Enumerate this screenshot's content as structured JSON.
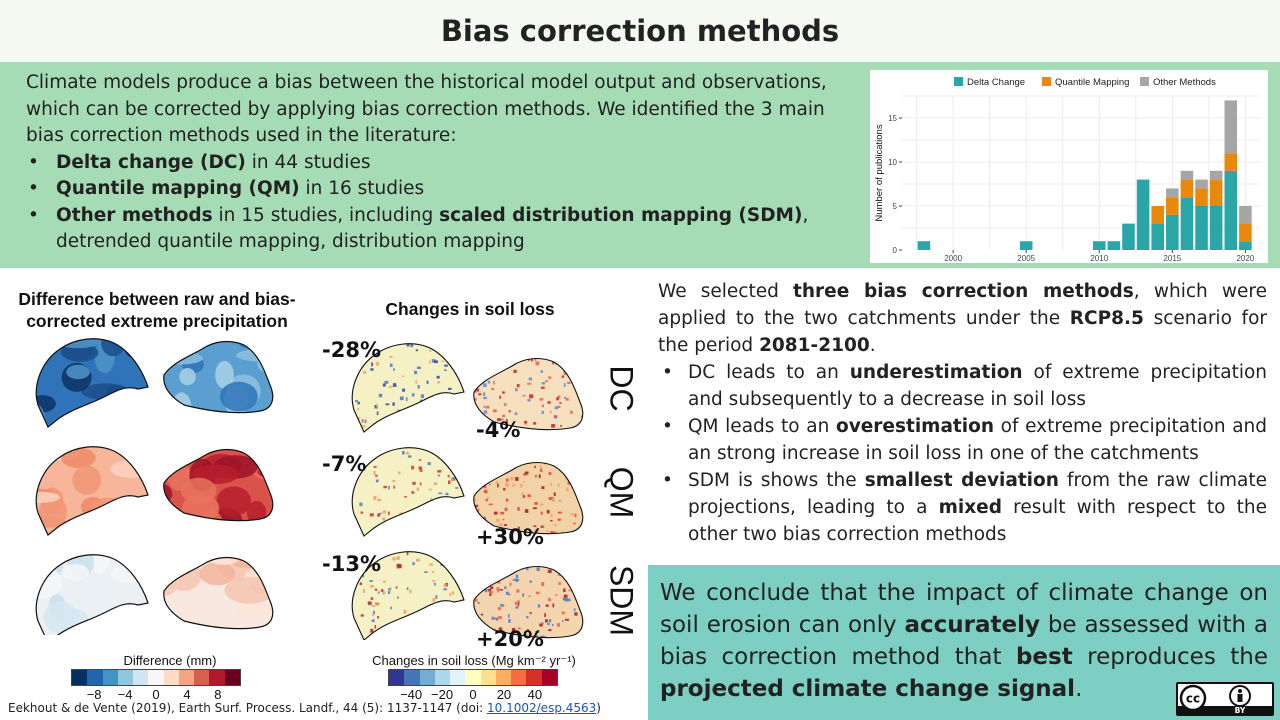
{
  "title": "Bias correction methods",
  "intro": {
    "lead": "Climate models produce a bias between the historical model output and observations, which can be corrected by applying bias correction methods. We identified the 3 main bias correction methods used in the literature:",
    "bullets": [
      {
        "bold": "Delta change (DC)",
        "rest": " in 44 studies"
      },
      {
        "bold": "Quantile mapping (QM)",
        "rest": " in 16 studies"
      },
      {
        "bold": "Other methods",
        "rest": " in 15 studies, including ",
        "bold2": "scaled distribution mapping (SDM)",
        "rest2": ", detrended quantile mapping, distribution mapping"
      }
    ]
  },
  "chart_data": {
    "type": "bar",
    "stacked": true,
    "legend_position": "top",
    "series": [
      {
        "name": "Delta Change",
        "color": "#2aa6a6"
      },
      {
        "name": "Quantile Mapping",
        "color": "#e8890c"
      },
      {
        "name": "Other Methods",
        "color": "#a6a6a6"
      }
    ],
    "ylabel": "Number of publications",
    "xlabel": "",
    "ylim": [
      0,
      17.5
    ],
    "xlim": [
      1996.5,
      2021
    ],
    "yticks": [
      0,
      5,
      10,
      15
    ],
    "xticks": [
      2000,
      2005,
      2010,
      2015,
      2020
    ],
    "grid": true,
    "bars": [
      {
        "year": 1998,
        "dc": 1,
        "qm": 0,
        "other": 0
      },
      {
        "year": 2005,
        "dc": 1,
        "qm": 0,
        "other": 0
      },
      {
        "year": 2010,
        "dc": 1,
        "qm": 0,
        "other": 0
      },
      {
        "year": 2011,
        "dc": 1,
        "qm": 0,
        "other": 0
      },
      {
        "year": 2012,
        "dc": 3,
        "qm": 0,
        "other": 0
      },
      {
        "year": 2013,
        "dc": 8,
        "qm": 0,
        "other": 0
      },
      {
        "year": 2014,
        "dc": 3,
        "qm": 2,
        "other": 0
      },
      {
        "year": 2015,
        "dc": 4,
        "qm": 2,
        "other": 1
      },
      {
        "year": 2016,
        "dc": 6,
        "qm": 2,
        "other": 1
      },
      {
        "year": 2017,
        "dc": 5,
        "qm": 2,
        "other": 1
      },
      {
        "year": 2018,
        "dc": 5,
        "qm": 3,
        "other": 1
      },
      {
        "year": 2019,
        "dc": 9,
        "qm": 2,
        "other": 6
      },
      {
        "year": 2020,
        "dc": 1,
        "qm": 2,
        "other": 2
      }
    ]
  },
  "left_panel": {
    "heading": "Difference between raw and bias-corrected extreme precipitation",
    "legend_title": "Difference (mm)",
    "legend_colors": [
      "#053061",
      "#2166ac",
      "#4393c3",
      "#92c5de",
      "#d1e5f0",
      "#f7f7f7",
      "#fddbc7",
      "#f4a582",
      "#d6604d",
      "#b2182b",
      "#67001f"
    ],
    "legend_ticks": [
      "−8",
      "−4",
      "0",
      "4",
      "8"
    ]
  },
  "middle_panel": {
    "heading": "Changes in soil loss",
    "legend_title": "Changes in soil loss (Mg km⁻² yr⁻¹)",
    "legend_colors": [
      "#313695",
      "#4575b4",
      "#74add1",
      "#abd9e9",
      "#e0f3f8",
      "#ffffbf",
      "#fee090",
      "#fdae61",
      "#f46d43",
      "#d73027",
      "#a50026"
    ],
    "legend_ticks": [
      "−40",
      "−20",
      "0",
      "20",
      "40"
    ],
    "percentages": {
      "dc_a": "-28%",
      "dc_b": "-4%",
      "qm_a": "-7%",
      "qm_b": "+30%",
      "sdm_a": "-13%",
      "sdm_b": "+20%"
    }
  },
  "methods": [
    "DC",
    "QM",
    "SDM"
  ],
  "maps": {
    "precip": [
      {
        "a_base": "#2f74b8",
        "a_spots": [
          "#1c4f8c",
          "#0c3365",
          "#4f93c8"
        ],
        "b_base": "#5a9fd0",
        "b_spots": [
          "#8ec0e0",
          "#2f74b8",
          "#a9d0e8"
        ]
      },
      {
        "a_base": "#f7b69c",
        "a_spots": [
          "#f19676",
          "#fbd3c0",
          "#ee8a66"
        ],
        "b_base": "#d9534a",
        "b_spots": [
          "#b61f2c",
          "#e8735e",
          "#9d1327"
        ]
      },
      {
        "a_base": "#eaf0f4",
        "a_spots": [
          "#d7e6f1",
          "#f6f6f6",
          "#c9dfee"
        ],
        "b_base": "#f9e8df",
        "b_spots": [
          "#f5c6b2",
          "#fde5d8",
          "#f2b49c"
        ]
      }
    ],
    "soil": [
      {
        "a_base": "#f5f1c4",
        "a_dots": [
          "#5b7fc2",
          "#3b54a0",
          "#f4a36b"
        ],
        "b_base": "#f6e0c0",
        "b_dots": [
          "#c9302c",
          "#e86b4f",
          "#6f8fcc"
        ]
      },
      {
        "a_base": "#f5f1c4",
        "a_dots": [
          "#5b7fc2",
          "#e8a26a",
          "#d63a2e"
        ],
        "b_base": "#f2d3a8",
        "b_dots": [
          "#b11f24",
          "#e04c37",
          "#f4a36b"
        ]
      },
      {
        "a_base": "#f5f1c4",
        "a_dots": [
          "#5b7fc2",
          "#e8a26a",
          "#c02a28"
        ],
        "b_base": "#f3d6b0",
        "b_dots": [
          "#b11f24",
          "#e86b4f",
          "#5b7fc2"
        ]
      }
    ]
  },
  "results": {
    "p1": "We selected ",
    "p1_bold": "three bias correction methods",
    "p2": ", which were applied to the two catchments under the ",
    "p2_bold": "RCP8.5",
    "p3": " scenario for the period ",
    "p3_bold": "2081-2100",
    "p4": ".",
    "bullets": [
      {
        "pre": "DC leads to an ",
        "bold": "underestimation",
        "post": " of extreme precipitation and subsequently to a decrease in soil loss"
      },
      {
        "pre": "QM leads to an ",
        "bold": "overestimation",
        "post": " of extreme precipitation and an strong increase in soil loss in one of the catchments"
      },
      {
        "pre": "SDM is shows the ",
        "bold": "smallest deviation",
        "post": " from the raw climate projections, leading to a ",
        "bold2": "mixed",
        "post2": " result with respect to the other two bias correction methods"
      }
    ]
  },
  "conclusion": {
    "t1": "We conclude that the impact of climate change on soil erosion can only ",
    "b1": "accurately",
    "t2": " be assessed with a bias correction method that ",
    "b2": "best",
    "t3": " reproduces the ",
    "b3": "projected climate change signal",
    "t4": "."
  },
  "citation": {
    "text": "Eekhout & de Vente (2019), Earth Surf. Process. Landf., 44 (5): 1137-1147 (doi: ",
    "doi": "10.1002/esp.4563",
    "close": ")"
  },
  "license": {
    "cc": "cc",
    "by": "BY"
  }
}
